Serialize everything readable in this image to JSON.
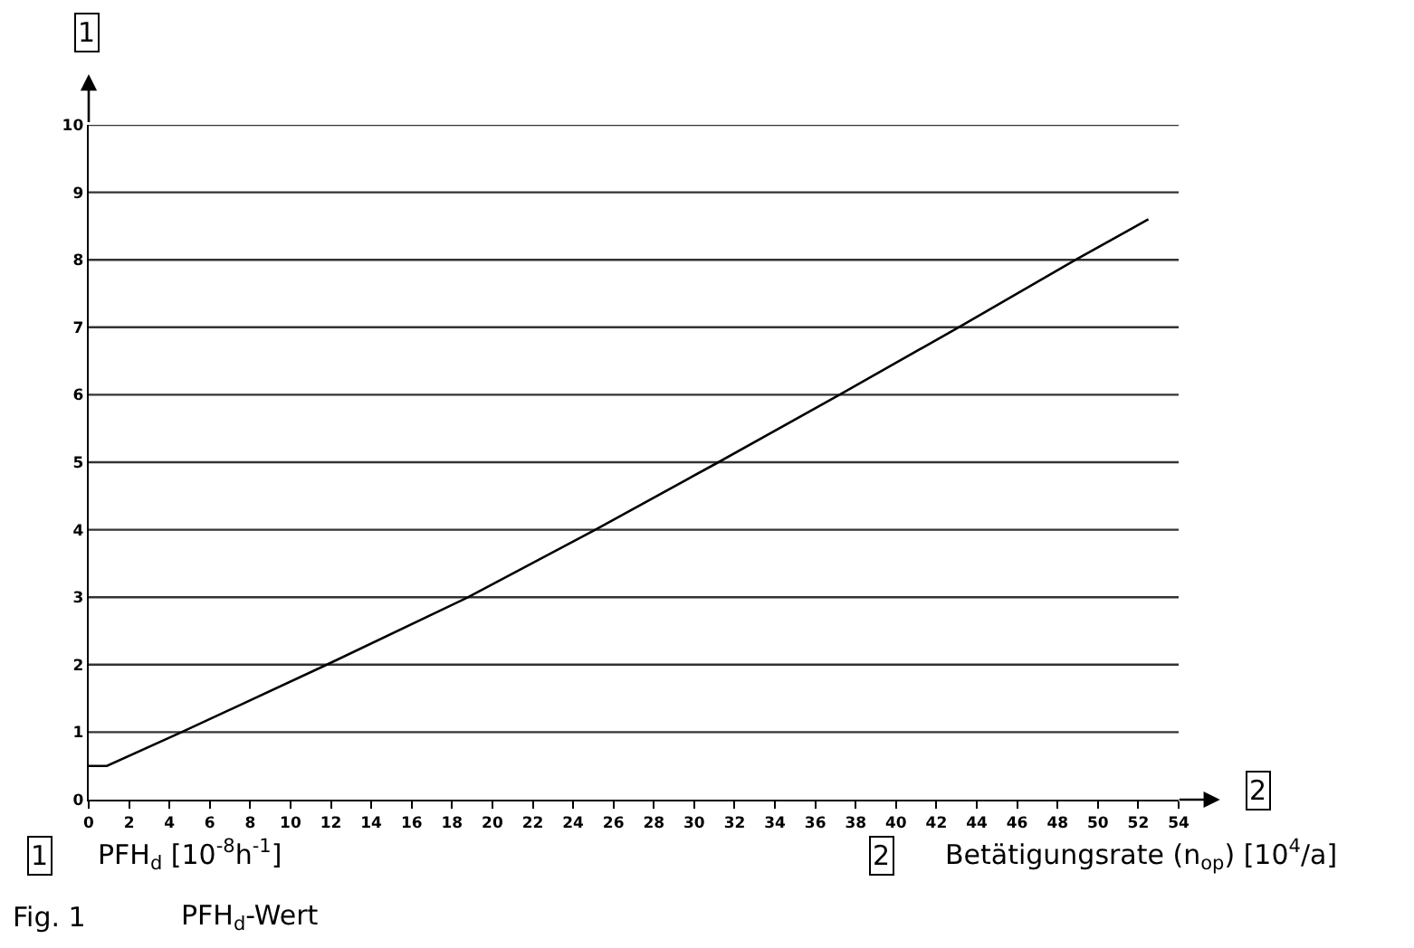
{
  "chart_data": {
    "type": "line",
    "ylabel": "1",
    "xlabel": "2",
    "color": "#000000",
    "x": [
      0,
      0.9,
      4.6,
      11.8,
      18.8,
      25.1,
      31.2,
      37.2,
      43.1,
      48.9,
      52.5
    ],
    "values": [
      0.5,
      0.5,
      1,
      2,
      3,
      4,
      5,
      6,
      7,
      8,
      8.6
    ],
    "xlim": [
      0,
      54
    ],
    "xticks": [
      0,
      2,
      4,
      6,
      8,
      10,
      12,
      14,
      16,
      18,
      20,
      22,
      24,
      26,
      28,
      30,
      32,
      34,
      36,
      38,
      40,
      42,
      44,
      46,
      48,
      50,
      52,
      54
    ],
    "ylim": [
      0,
      10
    ],
    "yticks": [
      0,
      1,
      2,
      3,
      4,
      5,
      6,
      7,
      8,
      9,
      10
    ],
    "grid": "y",
    "marker": "none",
    "line_style": "solid",
    "annotations": [
      "PFH$_{d}$ [10$^{-8}$h$^{-1}$]",
      "Betätigungsrate (n$_{op}$) [10$^{4}$/a]",
      "Fig. 1",
      "PFH$_{d}$-Wert"
    ]
  }
}
